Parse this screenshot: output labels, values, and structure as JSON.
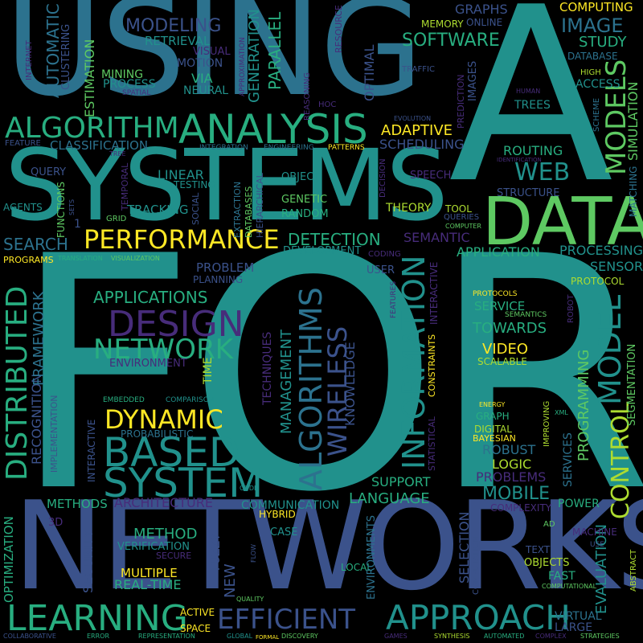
{
  "palette": {
    "background": "#000000",
    "deep_purple": "#472c7a",
    "indigo": "#3b528b",
    "steel_blue": "#2c728e",
    "teal": "#21918c",
    "jade": "#28ae80",
    "green": "#5ec962",
    "lime": "#addc30",
    "yellow": "#fde725"
  },
  "words": {
    "using": "USING",
    "a": "A",
    "for": "FOR",
    "networks": "NETWORKS",
    "systems": "SYSTEMS",
    "data": "DATA",
    "analysis": "ANALYSIS",
    "algorithm": "ALGORITHM",
    "performance": "PERFORMANCE",
    "learning": "LEARNING",
    "approach": "APPROACH",
    "efficient": "EFFICIENT",
    "based": "BASED",
    "system": "SYSTEM",
    "design": "DESIGN",
    "network": "NETWORK",
    "dynamic": "DYNAMIC",
    "distributed": "DISTRIBUTED",
    "information": "INFORMATION",
    "model": "MODEL",
    "control": "CONTROL",
    "models": "MODELS",
    "algorithms": "ALGORITHMS",
    "wireless": "WIRELESS",
    "web": "WEB",
    "software": "SOFTWARE",
    "image": "IMAGE",
    "modeling": "MODELING",
    "retrieval": "RETRIEVAL",
    "automatic": "AUTOMATIC",
    "clustering": "CLUSTERING",
    "estimation": "ESTIMATION",
    "parallel": "PARALLEL",
    "generation": "GENERATION",
    "optimal": "OPTIMAL",
    "resource": "RESOURCE",
    "graphs": "GRAPHS",
    "online": "ONLINE",
    "memory": "MEMORY",
    "computing": "COMPUTING",
    "study": "STUDY",
    "database": "DATABASE",
    "high": "HIGH",
    "access": "ACCESS",
    "simulation": "SIMULATION",
    "mining": "MINING",
    "process": "PROCESS",
    "via": "VIA",
    "neural": "NEURAL",
    "visual": "VISUAL",
    "motion": "MOTION",
    "spatial": "SPATIAL",
    "internet": "INTERNET",
    "approximation": "APPROXIMATION",
    "reasoning": "REASONING",
    "traffic": "TRAFFIC",
    "images": "IMAGES",
    "prediction": "PREDICTION",
    "human": "HUMAN",
    "trees": "TREES",
    "scheme": "SCHEME",
    "evolution": "EVOLUTION",
    "hoc": "HOC",
    "adaptive": "ADAPTIVE",
    "scheduling": "SCHEDULING",
    "classification": "CLASSIFICATION",
    "feature": "FEATURE",
    "tree": "TREE",
    "integration": "INTEGRATION",
    "engineering": "ENGINEERING",
    "patterns": "PATTERNS",
    "routing": "ROUTING",
    "identification": "IDENTIFICATION",
    "matching": "MATCHING",
    "structure": "STRUCTURE",
    "query": "QUERY",
    "linear": "LINEAR",
    "temporal": "TEMPORAL",
    "testing": "TESTING",
    "object": "OBJECT",
    "decision": "DECISION",
    "speech": "SPEECH",
    "agents": "AGENTS",
    "functions": "FUNCTIONS",
    "sets": "SETS",
    "tracking": "TRACKING",
    "grid": "GRID",
    "social": "SOCIAL",
    "extraction": "EXTRACTION",
    "databases": "DATABASES",
    "hierarchical": "HIERARCHICAL",
    "genetic": "GENETIC",
    "random": "RANDOM",
    "theory": "THEORY",
    "tool": "TOOL",
    "queries": "QUERIES",
    "computer": "COMPUTER",
    "one": "1",
    "search": "SEARCH",
    "detection": "DETECTION",
    "semantic": "SEMANTIC",
    "application": "APPLICATION",
    "processing": "PROCESSING",
    "sensor": "SENSOR",
    "protocol": "PROTOCOL",
    "protocols": "PROTOCOLS",
    "semantics": "SEMANTICS",
    "robot": "ROBOT",
    "segmentation": "SEGMENTATION",
    "programs": "PROGRAMS",
    "translation": "TRANSLATION",
    "visualization": "VISUALIZATION",
    "development": "DEVELOPMENT",
    "coding": "CODING",
    "user": "USER",
    "features": "FEATURES",
    "interactive": "INTERACTIVE",
    "problem": "PROBLEM",
    "planning": "PLANNING",
    "recognition": "RECOGNITION",
    "framework": "FRAMEWORK",
    "applications": "APPLICATIONS",
    "environment": "ENVIRONMENT",
    "time": "TIME",
    "techniques": "TECHNIQUES",
    "management": "MANAGEMENT",
    "knowledge": "KNOWLEDGE",
    "statistical": "STATISTICAL",
    "constraints": "CONSTRAINTS",
    "service": "SERVICE",
    "towards": "TOWARDS",
    "video": "VIDEO",
    "scalable": "SCALABLE",
    "programming": "PROGRAMMING",
    "evaluation": "EVALUATION",
    "energy": "ENERGY",
    "graph": "GRAPH",
    "digital": "DIGITAL",
    "bayesian": "BAYESIAN",
    "improving": "IMPROVING",
    "xml": "XML",
    "services": "SERVICES",
    "robust": "ROBUST",
    "logic": "LOGIC",
    "problems": "PROBLEMS",
    "embedded": "EMBEDDED",
    "comparison": "COMPARISON",
    "implementation": "IMPLEMENTATION",
    "probabilistic": "PROBABILISTIC",
    "support": "SUPPORT",
    "language": "LANGUAGE",
    "mobile": "MOBILE",
    "complexity": "COMPLEXITY",
    "power": "POWER",
    "architecture": "ARCHITECTURE",
    "methods": "METHODS",
    "communication": "COMMUNICATION",
    "code": "CODE",
    "hybrid": "HYBRID",
    "optimization": "OPTIMIZATION",
    "three_d": "3D",
    "method": "METHOD",
    "verification": "VERIFICATION",
    "secure": "SECURE",
    "security": "SECURITY",
    "multiple": "MULTIPLE",
    "real_time": "REAL-TIME",
    "fuzzy": "FUZZY",
    "new": "NEW",
    "case": "CASE",
    "flow": "FLOW",
    "local": "LOCAL",
    "environments": "ENVIRONMENTS",
    "selection": "SELECTION",
    "computation": "COMPUTATION",
    "ad": "AD",
    "text": "TEXT",
    "objects": "OBJECTS",
    "fast": "FAST",
    "machine": "MACHINE",
    "use": "USE",
    "computational": "COMPUTATIONAL",
    "abstract": "ABSTRACT",
    "active": "ACTIVE",
    "space": "SPACE",
    "quality": "QUALITY",
    "virtual": "VIRTUAL",
    "large": "LARGE",
    "collaborative": "COLLABORATIVE",
    "error": "ERROR",
    "representation": "REPRESENTATION",
    "global": "GLOBAL",
    "formal": "FORMAL",
    "discovery": "DISCOVERY",
    "games": "GAMES",
    "synthesis": "SYNTHESIS",
    "automated": "AUTOMATED",
    "complex": "COMPLEX",
    "strategies": "STRATEGIES"
  }
}
